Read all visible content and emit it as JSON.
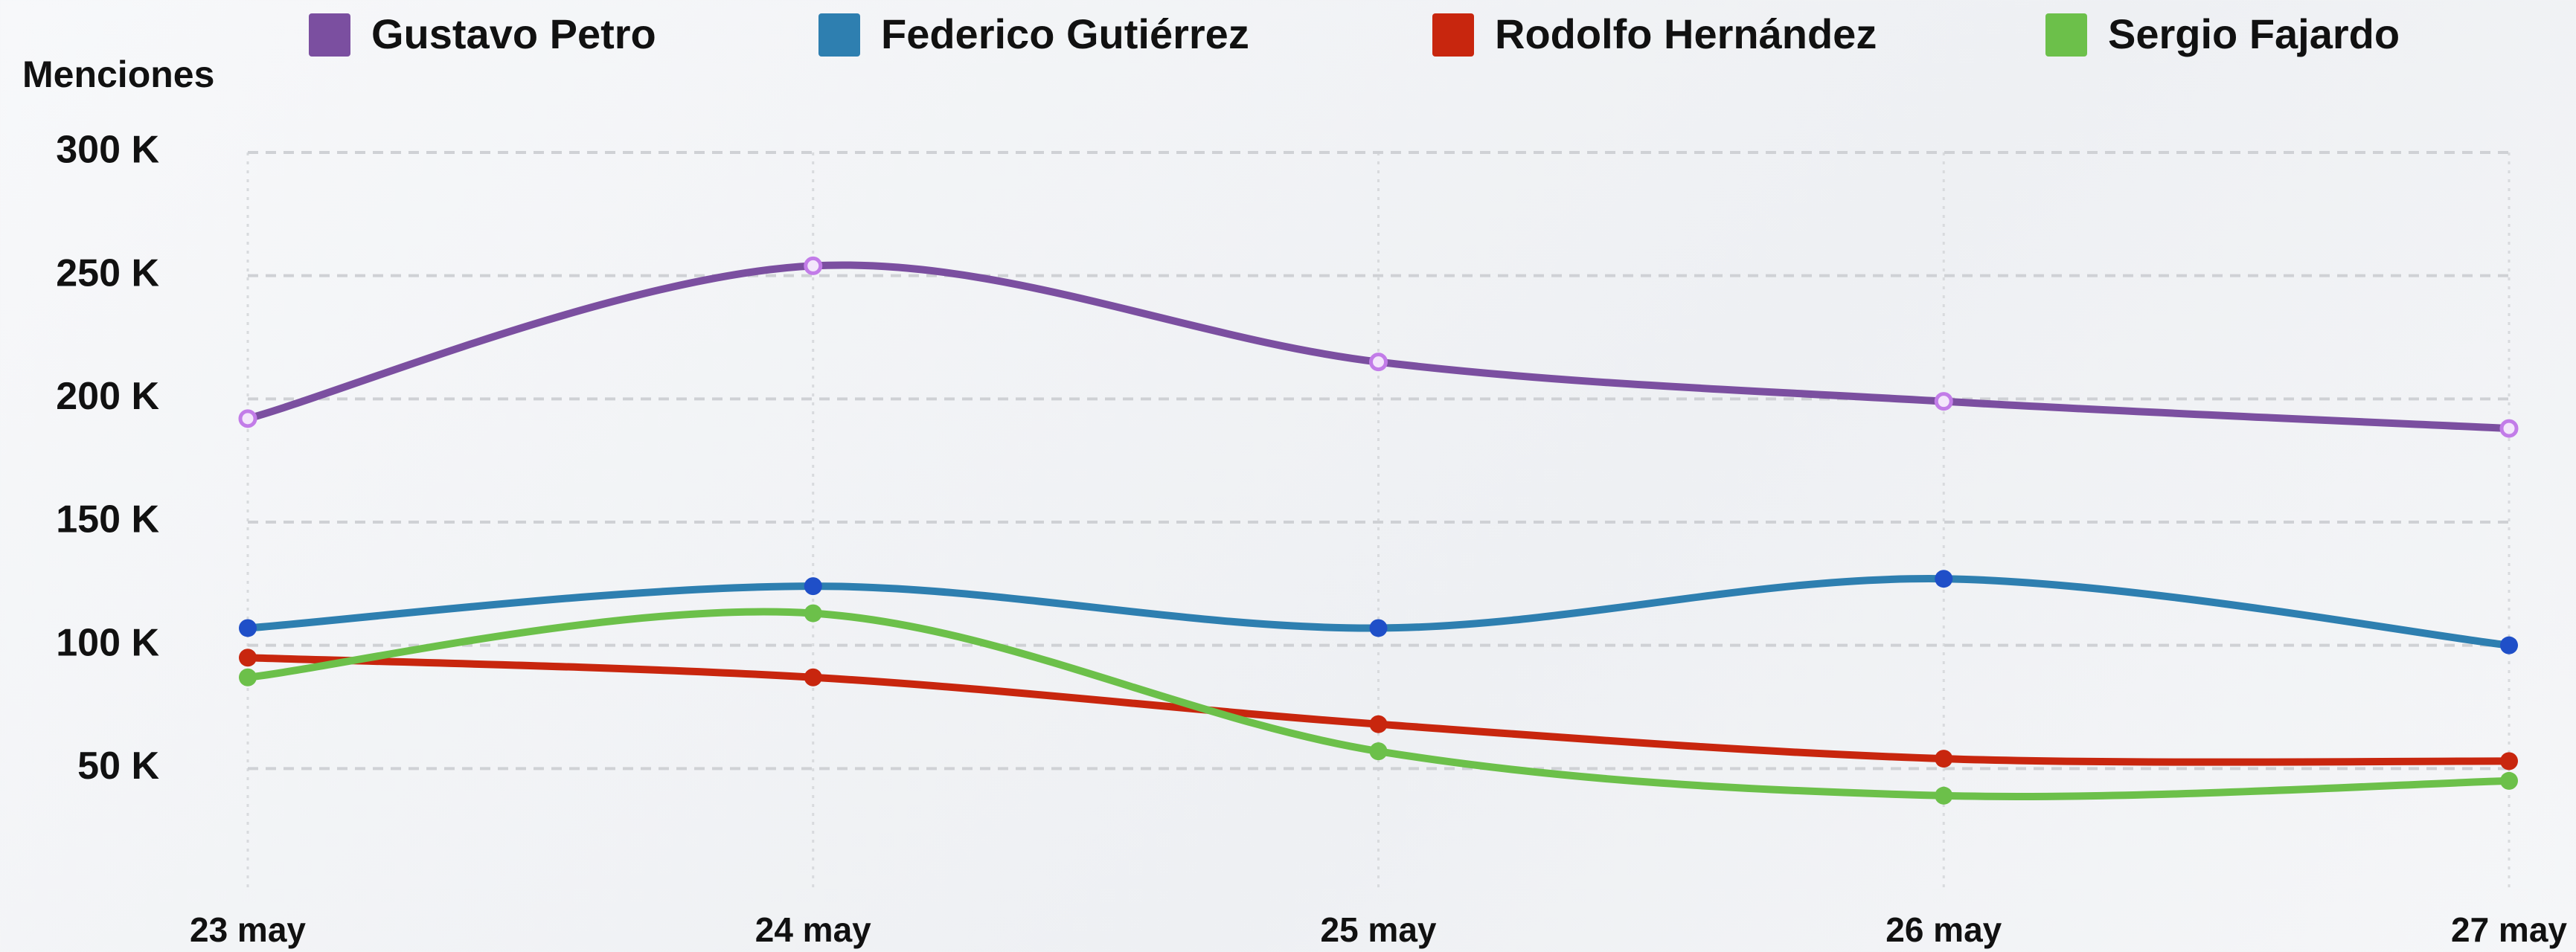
{
  "chart_data": {
    "type": "line",
    "y_label": "Menciones",
    "categories": [
      "23 may",
      "24 may",
      "25 may",
      "26 may",
      "27 may"
    ],
    "series": [
      {
        "name": "Gustavo Petro",
        "color": "#7b4fa0",
        "values": [
          192000,
          254000,
          215000,
          199000,
          188000
        ]
      },
      {
        "name": "Federico Gutiérrez",
        "color": "#2e7fb0",
        "values": [
          107000,
          124000,
          107000,
          127000,
          100000
        ]
      },
      {
        "name": "Rodolfo Hernández",
        "color": "#c8260e",
        "values": [
          95000,
          87000,
          68000,
          54000,
          53000
        ]
      },
      {
        "name": "Sergio Fajardo",
        "color": "#6cc04a",
        "values": [
          87000,
          113000,
          57000,
          39000,
          45000
        ]
      }
    ],
    "ylim": [
      0,
      300000
    ],
    "yticks": [
      {
        "value": 50000,
        "label": "50 K"
      },
      {
        "value": 100000,
        "label": "100 K"
      },
      {
        "value": 150000,
        "label": "150 K"
      },
      {
        "value": 200000,
        "label": "200 K"
      },
      {
        "value": 250000,
        "label": "250 K"
      },
      {
        "value": 300000,
        "label": "300 K"
      }
    ],
    "grid": true
  }
}
